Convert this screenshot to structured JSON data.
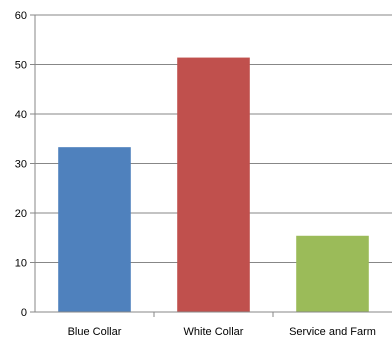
{
  "chart_data": {
    "type": "bar",
    "categories": [
      "Blue Collar",
      "White Collar",
      "Service and Farm"
    ],
    "values": [
      33.3,
      51.4,
      15.4
    ],
    "ylim": [
      0,
      60
    ],
    "yticks": [
      0,
      10,
      20,
      30,
      40,
      50,
      60
    ],
    "gridlines": true,
    "legend": "none",
    "colors": [
      "#4f81bd",
      "#c0504d",
      "#9bbb59"
    ]
  }
}
